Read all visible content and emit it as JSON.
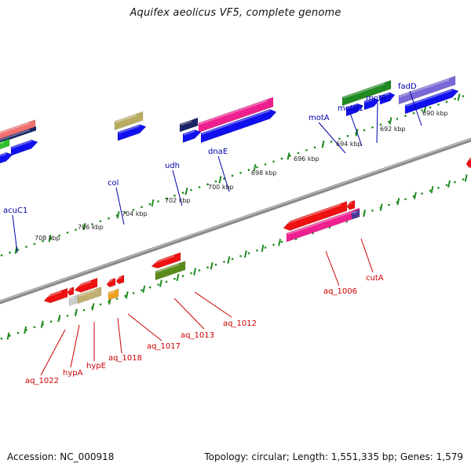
{
  "title": "Aquifex aeolicus VF5, complete genome",
  "accession": "Accession: NC_000918",
  "topology": "Topology: circular; Length: 1,551,335 bp; Genes: 1,579",
  "colors": {
    "ruler_tick": "#1f8a1f",
    "backbone": "#8a8a8a",
    "label_forward": "#0000aa",
    "label_reverse": "#cc0000",
    "cds_forward": "#1010ee",
    "cds_reverse": "#ee1111"
  },
  "kbp_ticks": [
    "690 kbp",
    "692 kbp",
    "694 kbp",
    "696 kbp",
    "698 kbp",
    "700 kbp",
    "702 kbp",
    "704 kbp",
    "706 kbp",
    "708 kbp"
  ],
  "forward_labels": [
    "fadD",
    "motB2",
    "motB1",
    "motA",
    "dnaE",
    "udh",
    "col",
    "acuC1"
  ],
  "reverse_labels": [
    "cutA",
    "aq_1006",
    "aq_1012",
    "aq_1013",
    "aq_1017",
    "aq_1018",
    "hypE",
    "hypA",
    "aq_1022"
  ]
}
